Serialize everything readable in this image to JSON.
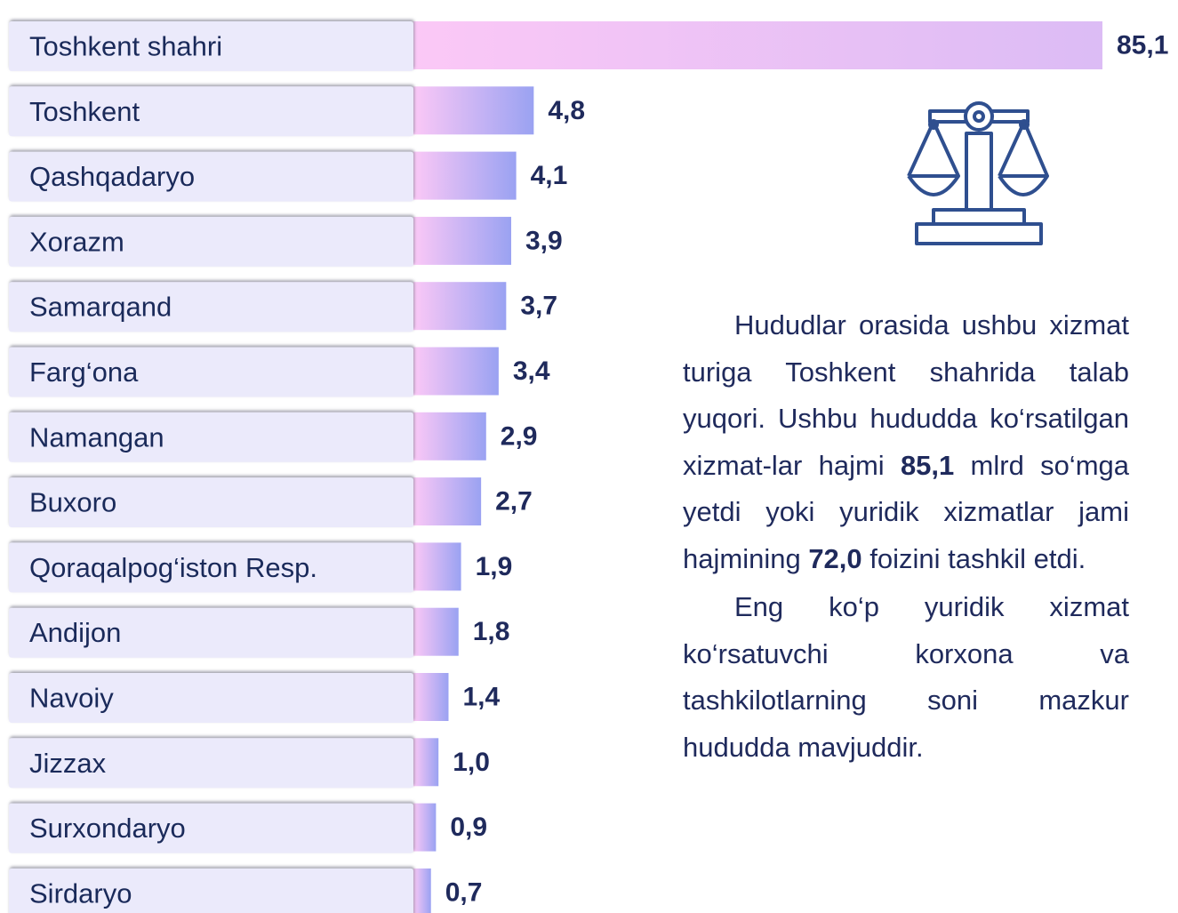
{
  "chart_data": {
    "type": "bar",
    "orientation": "horizontal",
    "categories": [
      "Toshkent shahri",
      "Toshkent",
      "Qashqadaryo",
      "Xorazm",
      "Samarqand",
      "Farg‘ona",
      "Namangan",
      "Buxoro",
      "Qoraqalpog‘iston Resp.",
      "Andijon",
      "Navoiy",
      "Jizzax",
      "Surxondaryo",
      "Sirdaryo"
    ],
    "values": [
      85.1,
      4.8,
      4.1,
      3.9,
      3.7,
      3.4,
      2.9,
      2.7,
      1.9,
      1.8,
      1.4,
      1.0,
      0.9,
      0.7
    ],
    "value_labels": [
      "85,1",
      "4,8",
      "4,1",
      "3,9",
      "3,7",
      "3,4",
      "2,9",
      "2,7",
      "1,9",
      "1,8",
      "1,4",
      "1,0",
      "0,9",
      "0,7"
    ],
    "color": [
      "#fbc8f6",
      "#9aa2f2"
    ]
  },
  "description": {
    "paragraphs": [
      {
        "parts": [
          {
            "text": "Hududlar orasida ushbu xizmat turiga Toshkent shahrida talab yuqori. Ushbu hududda ko‘rsatilgan xizmat-lar hajmi "
          },
          {
            "text": "85,1",
            "bold": true
          },
          {
            "text": " mlrd so‘mga yetdi yoki yuridik xizmatlar jami hajmining "
          },
          {
            "text": "72,0",
            "bold": true
          },
          {
            "text": " foizini tashkil etdi."
          }
        ]
      },
      {
        "parts": [
          {
            "text": "Eng ko‘p yuridik xizmat ko‘rsatuvchi korxona va tashkilotlarning soni mazkur hududda mavjuddir."
          }
        ]
      }
    ]
  }
}
